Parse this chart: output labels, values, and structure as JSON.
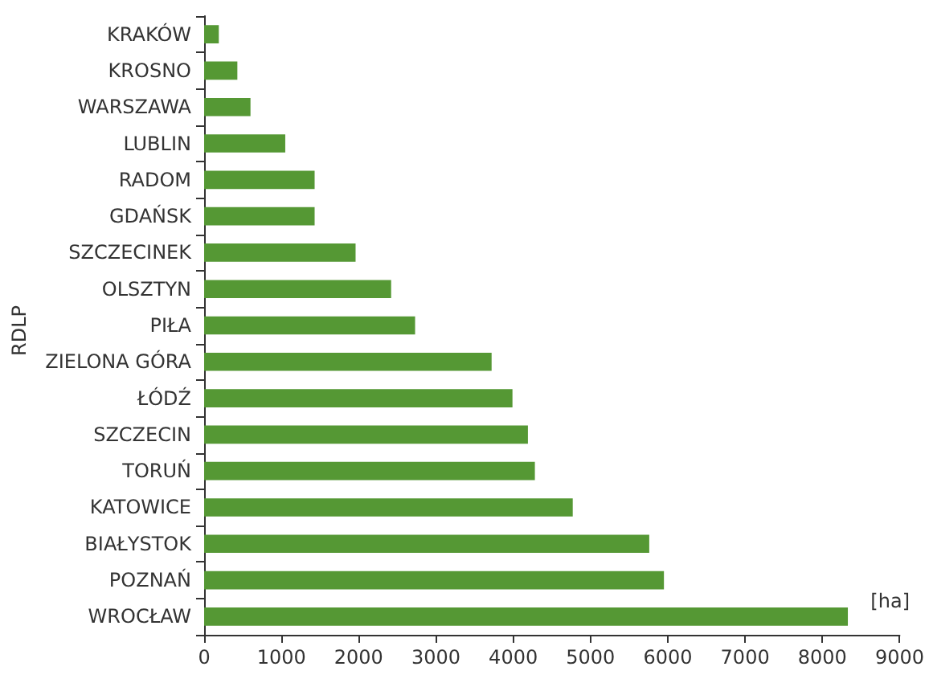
{
  "chart_data": {
    "type": "bar",
    "orientation": "horizontal",
    "ylabel": "RDLP",
    "xlabel": "[ha]",
    "categories": [
      "KRAKÓW",
      "KROSNO",
      "WARSZAWA",
      "LUBLIN",
      "RADOM",
      "GDAŃSK",
      "SZCZECINEK",
      "OLSZTYN",
      "PIŁA",
      "ZIELONA GÓRA",
      "ŁÓDŹ",
      "SZCZECIN",
      "TORUŃ",
      "KATOWICE",
      "BIAŁYSTOK",
      "POZNAŃ",
      "WROCŁAW"
    ],
    "values": [
      190,
      430,
      600,
      1050,
      1430,
      1430,
      1960,
      2420,
      2730,
      3720,
      3990,
      4190,
      4280,
      4770,
      5760,
      5950,
      8330
    ],
    "color": "#559834",
    "xlim": [
      0,
      9000
    ],
    "xticks": [
      0,
      1000,
      2000,
      3000,
      4000,
      5000,
      6000,
      7000,
      8000,
      9000
    ],
    "grid": false
  }
}
